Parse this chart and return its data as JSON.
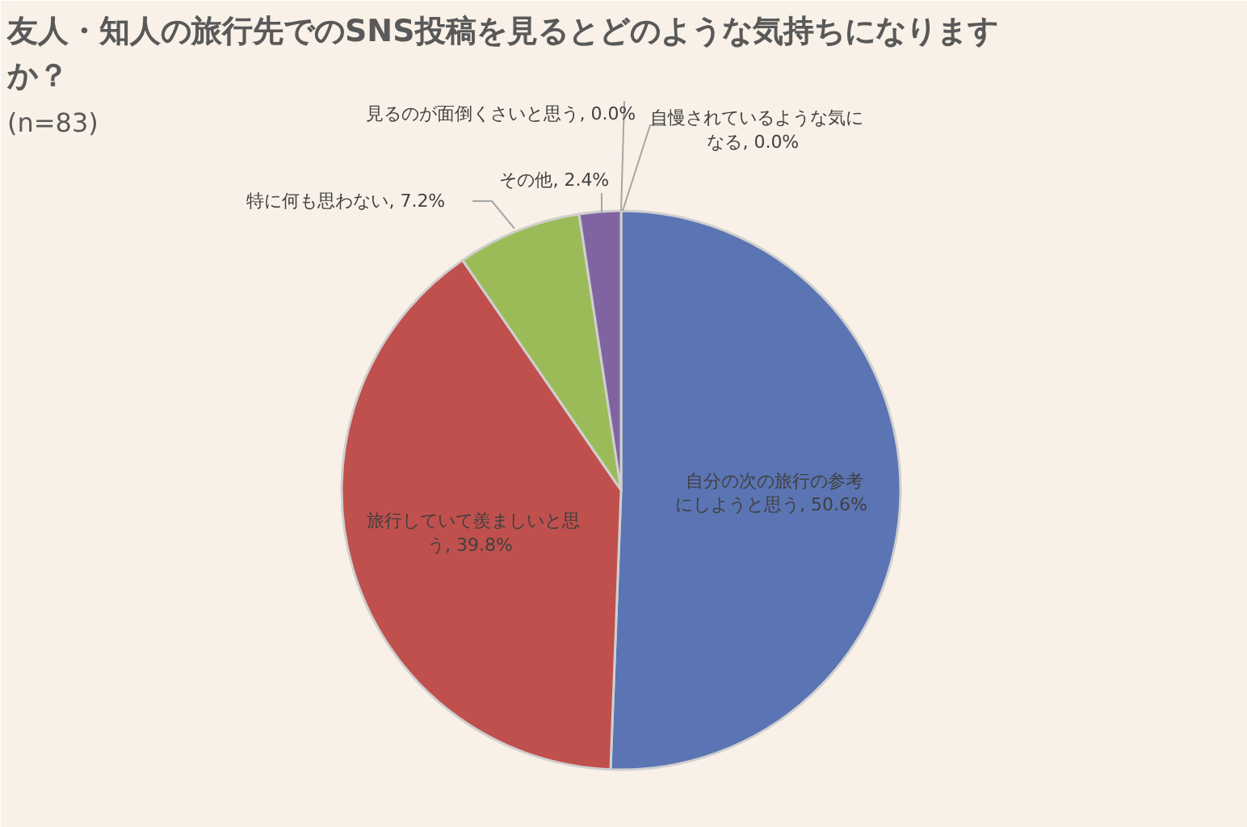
{
  "chart_data": {
    "type": "pie",
    "title": "友人・知人の旅行先でのSNS投稿を見るとどのような気持ちになりますか？",
    "subtitle": "(n=83)",
    "categories": [
      "自分の次の旅行の参考にしようと思う",
      "旅行していて羨ましいと思う",
      "特に何も思わない",
      "その他",
      "見るのが面倒くさいと思う",
      "自慢されているような気になる"
    ],
    "values": [
      50.6,
      39.8,
      7.2,
      2.4,
      0.0,
      0.0
    ],
    "colors": [
      "#5b74b3",
      "#c0504d",
      "#9bbb59",
      "#8064a2",
      "#4bacc6",
      "#f79646"
    ],
    "value_labels": [
      ", 50.6%",
      ", 39.8%",
      ", 7.2%",
      ", 2.4%",
      ", 0.0%",
      ", 0.0%"
    ]
  }
}
